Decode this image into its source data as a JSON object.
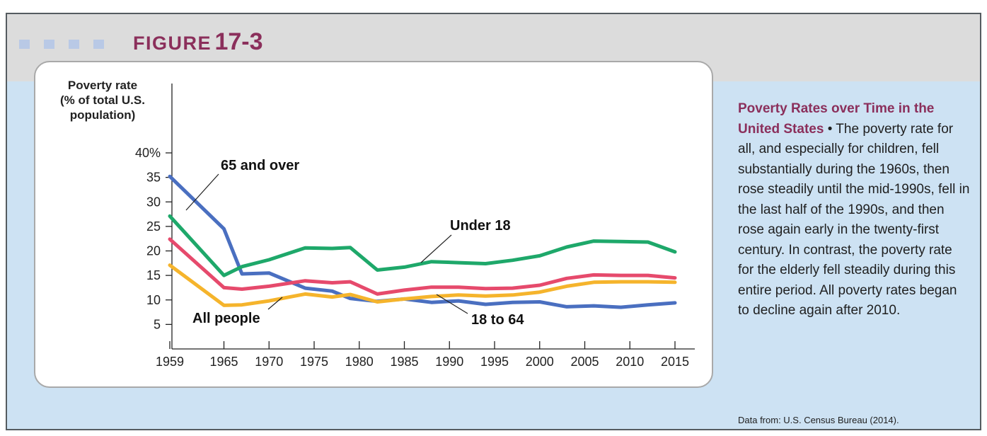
{
  "figure": {
    "label_word": "FIGURE",
    "label_number": "17-3"
  },
  "caption": {
    "title": "Poverty Rates over Time in the United States",
    "separator": " • ",
    "body": "The poverty rate for all, and especially for children, fell substantially during the 1960s, then rose steadily until the mid-1990s, fell in the last half of the 1990s, and then rose again early in the twenty-first century. In contrast, the poverty rate for the elderly fell steadily during this entire period. All poverty rates began to decline again after 2010.",
    "source": "Data from: U.S. Census Bureau (2014)."
  },
  "colors": {
    "frame_border": "#555c60",
    "header_band": "#dcdcdc",
    "body_band": "#cde2f3",
    "accent": "#8b2f5b",
    "header_squares": "#b9c9e6"
  },
  "chart_data": {
    "type": "line",
    "ylabel_lines": [
      "Poverty rate",
      "(% of total U.S.",
      "population)"
    ],
    "xlabel": "",
    "xlim": [
      1959,
      2015
    ],
    "ylim": [
      0,
      40
    ],
    "x_ticks": [
      1959,
      1965,
      1970,
      1975,
      1980,
      1985,
      1990,
      1995,
      2000,
      2005,
      2010,
      2015
    ],
    "x_tick_labels": [
      "1959",
      "1965",
      "1970",
      "1975",
      "1980",
      "1985",
      "1990",
      "1995",
      "2000",
      "2005",
      "2010",
      "2015"
    ],
    "y_ticks": [
      5,
      10,
      15,
      20,
      25,
      30,
      35,
      40
    ],
    "y_tick_labels": [
      "5",
      "10",
      "15",
      "20",
      "25",
      "30",
      "35",
      "40%"
    ],
    "grid": false,
    "legend": "none (direct labels)",
    "series": [
      {
        "name": "65 and over",
        "color": "#4a6fc0",
        "x": [
          1959,
          1965,
          1967,
          1970,
          1974,
          1977,
          1979,
          1982,
          1985,
          1988,
          1991,
          1994,
          1997,
          2000,
          2003,
          2006,
          2009,
          2012,
          2015
        ],
        "y": [
          35.2,
          24.5,
          15.3,
          15.5,
          12.4,
          11.8,
          10.3,
          9.7,
          10.2,
          9.5,
          9.8,
          9.1,
          9.5,
          9.6,
          8.6,
          8.8,
          8.5,
          9.0,
          9.4
        ]
      },
      {
        "name": "Under 18",
        "color": "#1ea86a",
        "x": [
          1959,
          1965,
          1967,
          1970,
          1974,
          1977,
          1979,
          1982,
          1985,
          1988,
          1991,
          1994,
          1997,
          2000,
          2003,
          2006,
          2009,
          2012,
          2015
        ],
        "y": [
          27.1,
          15.0,
          16.8,
          18.2,
          20.6,
          20.5,
          20.7,
          16.1,
          16.7,
          17.8,
          17.6,
          17.4,
          18.1,
          19.0,
          20.8,
          22.0,
          21.9,
          21.8,
          19.8
        ]
      },
      {
        "name": "All people",
        "color": "#e64a6c",
        "x": [
          1959,
          1965,
          1967,
          1970,
          1974,
          1977,
          1979,
          1982,
          1985,
          1988,
          1991,
          1994,
          1997,
          2000,
          2003,
          2006,
          2009,
          2012,
          2015
        ],
        "y": [
          22.4,
          12.5,
          12.2,
          12.8,
          13.9,
          13.5,
          13.7,
          11.2,
          12.0,
          12.6,
          12.6,
          12.3,
          12.4,
          13.0,
          14.4,
          15.1,
          15.0,
          15.0,
          14.5
        ]
      },
      {
        "name": "18 to 64",
        "color": "#f5b42c",
        "x": [
          1959,
          1965,
          1967,
          1970,
          1974,
          1977,
          1979,
          1982,
          1985,
          1988,
          1991,
          1994,
          1997,
          2000,
          2003,
          2006,
          2009,
          2012,
          2015
        ],
        "y": [
          17.1,
          8.9,
          9.0,
          9.8,
          11.2,
          10.6,
          11.1,
          9.6,
          10.2,
          10.7,
          11.0,
          10.8,
          11.0,
          11.6,
          12.8,
          13.6,
          13.7,
          13.7,
          13.6
        ]
      }
    ]
  }
}
